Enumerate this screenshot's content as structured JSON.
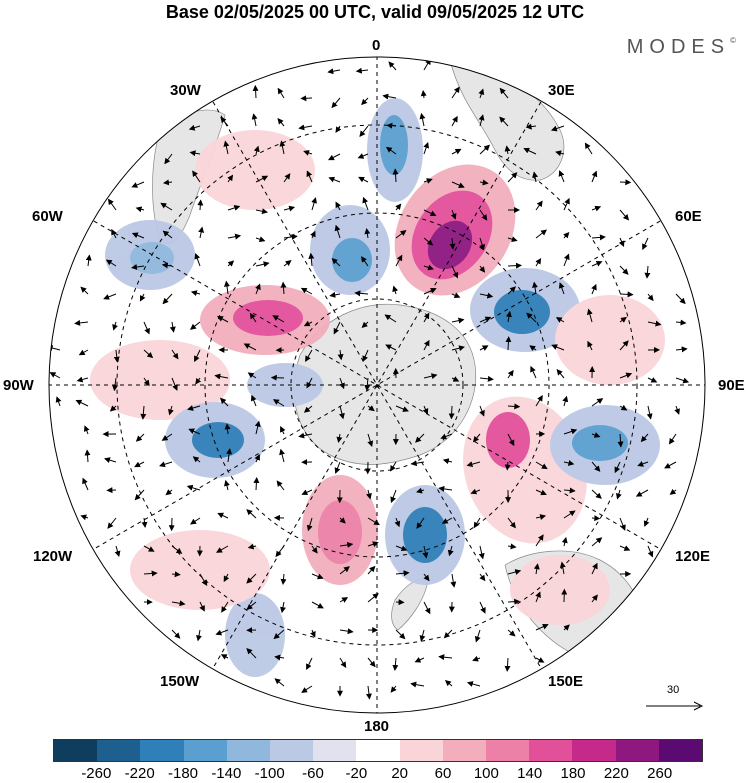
{
  "title": "Base 02/05/2025 00 UTC, valid 09/05/2025 12 UTC",
  "brand": "MODES",
  "brand_mark": "©",
  "longitude_labels": {
    "top": "0",
    "top_left": "30W",
    "top_right": "30E",
    "upper_left": "60W",
    "upper_right": "60E",
    "left": "90W",
    "right": "90E",
    "lower_left": "120W",
    "lower_right": "120E",
    "bottom_left": "150W",
    "bottom_right": "150E",
    "bottom": "180"
  },
  "reference_vector": "30",
  "colorbar": {
    "colors": [
      "#0f3d5e",
      "#1d5f8f",
      "#2f7fb8",
      "#5a9fcf",
      "#8fb8dc",
      "#bcc9e5",
      "#e2e2ef",
      "#ffffff",
      "#f9d5d9",
      "#f3aebd",
      "#ec80a6",
      "#e2509a",
      "#c52a8b",
      "#8e1780",
      "#5a0a70"
    ],
    "ticks": [
      "-260",
      "-220",
      "-180",
      "-140",
      "-100",
      "-60",
      "-20",
      "20",
      "60",
      "100",
      "140",
      "180",
      "220",
      "260"
    ]
  },
  "map": {
    "projection": "polar stereographic (south pole)",
    "anomaly_blobs": [
      {
        "region": "near 0° (north)",
        "sign": "negative",
        "value": -120
      },
      {
        "region": "30E-45E",
        "sign": "positive",
        "value": 240
      },
      {
        "region": "60E-75E",
        "sign": "negative",
        "value": -150
      },
      {
        "region": "60W",
        "sign": "negative",
        "value": -100
      },
      {
        "region": "30W",
        "sign": "positive",
        "value": 70
      },
      {
        "region": "75W",
        "sign": "positive",
        "value": 140
      },
      {
        "region": "100W",
        "sign": "negative",
        "value": -160
      },
      {
        "region": "160W",
        "sign": "positive",
        "value": 150
      },
      {
        "region": "170E",
        "sign": "negative",
        "value": -160
      },
      {
        "region": "110E",
        "sign": "positive",
        "value": 160
      },
      {
        "region": "100E",
        "sign": "negative",
        "value": -140
      },
      {
        "region": "140W",
        "sign": "negative",
        "value": -80
      }
    ]
  }
}
